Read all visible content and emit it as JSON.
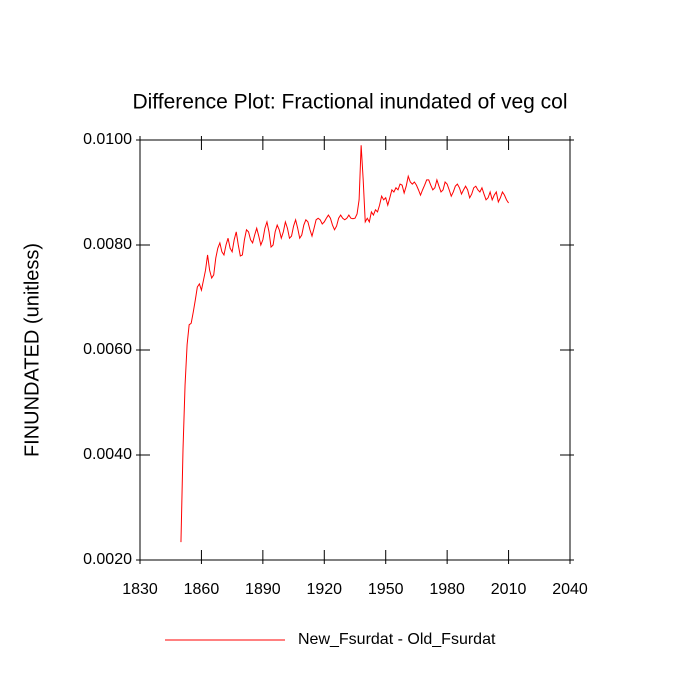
{
  "chart_data": {
    "type": "line",
    "title": "Difference Plot: Fractional inundated of veg col",
    "y_label": "FINUNDATED  (unitless)",
    "legend": "bottom",
    "x": [
      1850,
      1851,
      1852,
      1853,
      1854,
      1855,
      1856,
      1857,
      1858,
      1859,
      1860,
      1861,
      1862,
      1863,
      1864,
      1865,
      1866,
      1867,
      1868,
      1869,
      1870,
      1871,
      1872,
      1873,
      1874,
      1875,
      1876,
      1877,
      1878,
      1879,
      1880,
      1881,
      1882,
      1883,
      1884,
      1885,
      1886,
      1887,
      1888,
      1889,
      1890,
      1891,
      1892,
      1893,
      1894,
      1895,
      1896,
      1897,
      1898,
      1899,
      1900,
      1901,
      1902,
      1903,
      1904,
      1905,
      1906,
      1907,
      1908,
      1909,
      1910,
      1911,
      1912,
      1913,
      1914,
      1915,
      1916,
      1917,
      1918,
      1919,
      1920,
      1921,
      1922,
      1923,
      1924,
      1925,
      1926,
      1927,
      1928,
      1929,
      1930,
      1931,
      1932,
      1933,
      1934,
      1935,
      1936,
      1937,
      1938,
      1939,
      1940,
      1941,
      1942,
      1943,
      1944,
      1945,
      1946,
      1947,
      1948,
      1949,
      1950,
      1951,
      1952,
      1953,
      1954,
      1955,
      1956,
      1957,
      1958,
      1959,
      1960,
      1961,
      1962,
      1963,
      1964,
      1965,
      1966,
      1967,
      1968,
      1969,
      1970,
      1971,
      1972,
      1973,
      1974,
      1975,
      1976,
      1977,
      1978,
      1979,
      1980,
      1981,
      1982,
      1983,
      1984,
      1985,
      1986,
      1987,
      1988,
      1989,
      1990,
      1991,
      1992,
      1993,
      1994,
      1995,
      1996,
      1997,
      1998,
      1999,
      2000,
      2001,
      2002,
      2003,
      2004,
      2005,
      2006,
      2007,
      2008,
      2009,
      2010
    ],
    "series": [
      {
        "name": "New_Fsurdat - Old_Fsurdat",
        "color": "#ff0000",
        "values": [
          0.00234,
          0.0041,
          0.00533,
          0.0061,
          0.00648,
          0.00651,
          0.00672,
          0.00695,
          0.0072,
          0.00726,
          0.00714,
          0.00733,
          0.00752,
          0.00781,
          0.00752,
          0.00737,
          0.00743,
          0.00775,
          0.00794,
          0.00804,
          0.00787,
          0.00781,
          0.008,
          0.00813,
          0.00794,
          0.00787,
          0.0081,
          0.00825,
          0.008,
          0.00779,
          0.00781,
          0.0081,
          0.00829,
          0.00825,
          0.0081,
          0.00804,
          0.00819,
          0.00832,
          0.00817,
          0.008,
          0.0081,
          0.00832,
          0.00844,
          0.00825,
          0.00796,
          0.008,
          0.00825,
          0.00838,
          0.00829,
          0.00813,
          0.00825,
          0.00844,
          0.00832,
          0.00813,
          0.00817,
          0.00836,
          0.00848,
          0.00832,
          0.00813,
          0.00819,
          0.00838,
          0.00848,
          0.00844,
          0.00829,
          0.00817,
          0.00832,
          0.00848,
          0.00851,
          0.00848,
          0.0084,
          0.00844,
          0.00851,
          0.00857,
          0.00851,
          0.00838,
          0.00829,
          0.00836,
          0.00851,
          0.00857,
          0.00851,
          0.00848,
          0.00851,
          0.00857,
          0.00851,
          0.0085,
          0.00851,
          0.00859,
          0.00886,
          0.0099,
          0.00924,
          0.00844,
          0.00851,
          0.00844,
          0.00863,
          0.00857,
          0.00867,
          0.00863,
          0.00876,
          0.00893,
          0.00886,
          0.0089,
          0.00876,
          0.0089,
          0.00905,
          0.00901,
          0.00909,
          0.00905,
          0.00916,
          0.00914,
          0.00899,
          0.00912,
          0.00931,
          0.0092,
          0.00916,
          0.0092,
          0.00914,
          0.00905,
          0.00895,
          0.00905,
          0.00914,
          0.00924,
          0.00924,
          0.00914,
          0.00905,
          0.00909,
          0.00924,
          0.00912,
          0.00901,
          0.00905,
          0.0092,
          0.00916,
          0.00905,
          0.00893,
          0.00901,
          0.00912,
          0.00916,
          0.00909,
          0.00897,
          0.00905,
          0.00912,
          0.00905,
          0.0089,
          0.00897,
          0.00909,
          0.00912,
          0.00905,
          0.00901,
          0.00909,
          0.00897,
          0.00886,
          0.0089,
          0.00901,
          0.00886,
          0.00895,
          0.00901,
          0.00882,
          0.0089,
          0.00901,
          0.00895,
          0.00886,
          0.0088
        ]
      }
    ],
    "xlim": [
      1830,
      2040
    ],
    "xticks": [
      1830,
      1860,
      1890,
      1920,
      1950,
      1980,
      2010,
      2040
    ],
    "ylim": [
      0.002,
      0.01
    ],
    "yticks": [
      {
        "value": 0.002,
        "label": "0.0020"
      },
      {
        "value": 0.004,
        "label": "0.0040"
      },
      {
        "value": 0.006,
        "label": "0.0060"
      },
      {
        "value": 0.008,
        "label": "0.0080"
      },
      {
        "value": 0.01,
        "label": "0.0100"
      }
    ],
    "grid": false
  }
}
